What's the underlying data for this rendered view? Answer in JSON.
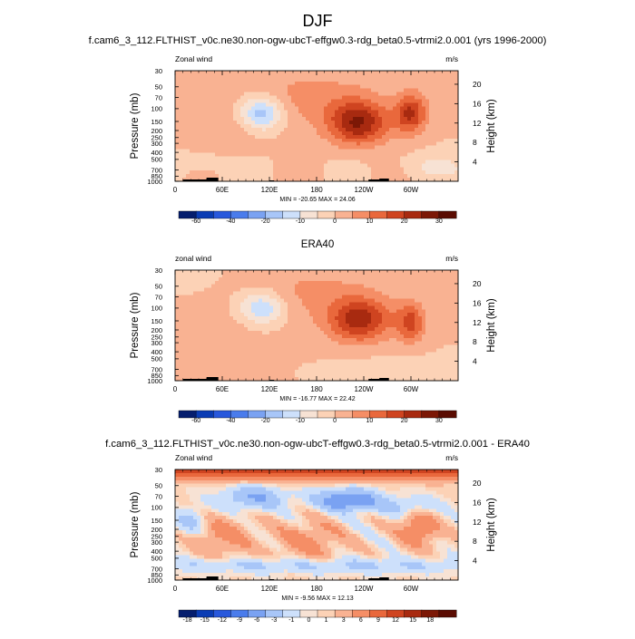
{
  "page": {
    "title": "DJF"
  },
  "chart_data": [
    {
      "type": "heatmap",
      "title": "f.cam6_3_112.FLTHIST_v0c.ne30.non-ogw-ubcT-effgw0.3-rdg_beta0.5-vtrmi2.0.001 (yrs 1996-2000)",
      "left_label": "Zonal wind",
      "right_label": "m/s",
      "ylabel": "Pressure (mb)",
      "ylabel_right": "Height (km)",
      "x_ticks": [
        "0",
        "60E",
        "120E",
        "180",
        "120W",
        "60W"
      ],
      "y_ticks": [
        "30",
        "50",
        "70",
        "100",
        "150",
        "200",
        "250",
        "300",
        "400",
        "500",
        "700",
        "850",
        "1000"
      ],
      "y2_ticks": [
        "20",
        "16",
        "12",
        "8",
        "4"
      ],
      "stats": "MIN = -20.65  MAX = 24.06",
      "min": -20.65,
      "max": 24.06,
      "colorbar_labels": [
        "-60",
        "-40",
        "-20",
        "-10",
        "0",
        "10",
        "20",
        "30"
      ],
      "colorbar_colors": [
        "#051e6e",
        "#0a3cb4",
        "#2858dc",
        "#4a7cec",
        "#7aa2f2",
        "#a8c6f8",
        "#cde0fb",
        "#f7e2d4",
        "#fcd2b6",
        "#f9b292",
        "#f58e66",
        "#e9683c",
        "#cf4420",
        "#a82a10",
        "#7c1806",
        "#5a0c02"
      ],
      "features": [
        {
          "kind": "jet",
          "sign": "negative",
          "lon": 110,
          "p": 150,
          "value": -20.6
        },
        {
          "kind": "jet",
          "sign": "positive",
          "lon": 235,
          "p": 200,
          "value": 24.1
        },
        {
          "kind": "jet",
          "sign": "positive",
          "lon": 298,
          "p": 150,
          "value": 20
        }
      ]
    },
    {
      "type": "heatmap",
      "title": "ERA40",
      "left_label": "zonal wind",
      "right_label": "m/s",
      "ylabel": "Pressure (mb)",
      "ylabel_right": "Height (km)",
      "x_ticks": [
        "0",
        "60E",
        "120E",
        "180",
        "120W",
        "60W"
      ],
      "y_ticks": [
        "30",
        "50",
        "70",
        "100",
        "150",
        "200",
        "250",
        "300",
        "400",
        "500",
        "700",
        "850",
        "1000"
      ],
      "y2_ticks": [
        "20",
        "16",
        "12",
        "8",
        "4"
      ],
      "stats": "MIN = -16.77  MAX = 22.42",
      "min": -16.77,
      "max": 22.42,
      "colorbar_labels": [
        "-60",
        "-40",
        "-20",
        "-10",
        "0",
        "10",
        "20",
        "30"
      ],
      "colorbar_colors": [
        "#051e6e",
        "#0a3cb4",
        "#2858dc",
        "#4a7cec",
        "#7aa2f2",
        "#a8c6f8",
        "#cde0fb",
        "#f7e2d4",
        "#fcd2b6",
        "#f9b292",
        "#f58e66",
        "#e9683c",
        "#cf4420",
        "#a82a10",
        "#7c1806",
        "#5a0c02"
      ],
      "features": [
        {
          "kind": "jet",
          "sign": "negative",
          "lon": 110,
          "p": 120,
          "value": -16.8
        },
        {
          "kind": "jet",
          "sign": "positive",
          "lon": 235,
          "p": 180,
          "value": 22.4
        },
        {
          "kind": "jet",
          "sign": "positive",
          "lon": 300,
          "p": 170,
          "value": 16
        }
      ]
    },
    {
      "type": "heatmap",
      "title": "f.cam6_3_112.FLTHIST_v0c.ne30.non-ogw-ubcT-effgw0.3-rdg_beta0.5-vtrmi2.0.001 - ERA40",
      "left_label": "Zonal wind",
      "right_label": "m/s",
      "ylabel": "Pressure (mb)",
      "ylabel_right": "Height (km)",
      "x_ticks": [
        "0",
        "60E",
        "120E",
        "180",
        "120W",
        "60W"
      ],
      "y_ticks": [
        "30",
        "50",
        "70",
        "100",
        "150",
        "200",
        "250",
        "300",
        "400",
        "500",
        "700",
        "850",
        "1000"
      ],
      "y2_ticks": [
        "20",
        "16",
        "12",
        "8",
        "4"
      ],
      "stats": "MIN = -9.56  MAX = 12.13",
      "min": -9.56,
      "max": 12.13,
      "colorbar_labels": [
        "-18",
        "-15",
        "-12",
        "-9",
        "-6",
        "-3",
        "-1",
        "0",
        "1",
        "3",
        "6",
        "9",
        "12",
        "15",
        "18"
      ],
      "colorbar_colors": [
        "#051e6e",
        "#0a3cb4",
        "#2858dc",
        "#4a7cec",
        "#7aa2f2",
        "#a8c6f8",
        "#cde0fb",
        "#f7e2d4",
        "#fcd2b6",
        "#f9b292",
        "#f58e66",
        "#e9683c",
        "#cf4420",
        "#a82a10",
        "#7c1806",
        "#5a0c02"
      ],
      "features": [
        {
          "kind": "band",
          "sign": "positive",
          "p": 30,
          "value": 12.1
        },
        {
          "kind": "blob",
          "sign": "negative",
          "lon": 220,
          "p": 110,
          "value": -9.6
        },
        {
          "kind": "blob",
          "sign": "positive",
          "lon": 310,
          "p": 200,
          "value": 6
        }
      ]
    }
  ]
}
